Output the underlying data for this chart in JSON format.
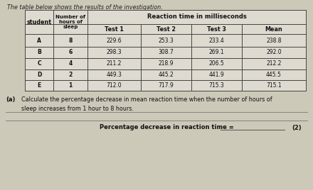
{
  "title": "The table below shows the results of the investigation.",
  "rows": [
    [
      "A",
      "8",
      "229.6",
      "253.3",
      "233.4",
      "238.8"
    ],
    [
      "B",
      "6",
      "298.3",
      "308.7",
      "269.1",
      "292.0"
    ],
    [
      "C",
      "4",
      "211.2",
      "218.9",
      "206.5",
      "212.2"
    ],
    [
      "D",
      "2",
      "449.3",
      "445.2",
      "441.9",
      "445.5"
    ],
    [
      "E",
      "1",
      "712.0",
      "717.9",
      "715.3",
      "715.1"
    ]
  ],
  "question_label": "(a)",
  "question_text": "Calculate the percentage decrease in mean reaction time when the number of hours of\nsleep increases from 1 hour to 8 hours.",
  "answer_label": "Percentage decrease in reaction time =",
  "marks": "(2)",
  "bg_color": "#cdc9b8",
  "table_bg": "#dedad0",
  "line_color": "#444444",
  "text_color": "#111111",
  "title_color": "#222222"
}
